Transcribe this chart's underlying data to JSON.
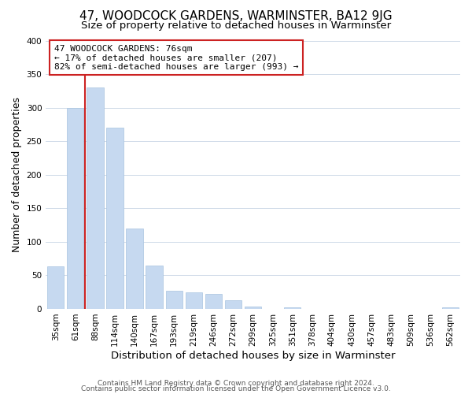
{
  "title": "47, WOODCOCK GARDENS, WARMINSTER, BA12 9JG",
  "subtitle": "Size of property relative to detached houses in Warminster",
  "xlabel": "Distribution of detached houses by size in Warminster",
  "ylabel": "Number of detached properties",
  "bar_labels": [
    "35sqm",
    "61sqm",
    "88sqm",
    "114sqm",
    "140sqm",
    "167sqm",
    "193sqm",
    "219sqm",
    "246sqm",
    "272sqm",
    "299sqm",
    "325sqm",
    "351sqm",
    "378sqm",
    "404sqm",
    "430sqm",
    "457sqm",
    "483sqm",
    "509sqm",
    "536sqm",
    "562sqm"
  ],
  "bar_values": [
    63,
    300,
    330,
    270,
    120,
    65,
    27,
    25,
    22,
    13,
    4,
    0,
    2,
    0,
    0,
    0,
    0,
    0,
    0,
    0,
    2
  ],
  "bar_color": "#c6d9f0",
  "bar_edge_color": "#a8c4e0",
  "annotation_text": "47 WOODCOCK GARDENS: 76sqm\n← 17% of detached houses are smaller (207)\n82% of semi-detached houses are larger (993) →",
  "annotation_box_facecolor": "#ffffff",
  "annotation_box_edgecolor": "#cc2222",
  "ref_line_color": "#cc2222",
  "ref_line_x": 1.5,
  "ylim": [
    0,
    400
  ],
  "yticks": [
    0,
    50,
    100,
    150,
    200,
    250,
    300,
    350,
    400
  ],
  "footer1": "Contains HM Land Registry data © Crown copyright and database right 2024.",
  "footer2": "Contains public sector information licensed under the Open Government Licence v3.0.",
  "title_fontsize": 11,
  "subtitle_fontsize": 9.5,
  "xlabel_fontsize": 9.5,
  "ylabel_fontsize": 9,
  "tick_fontsize": 7.5,
  "annot_fontsize": 8,
  "footer_fontsize": 6.5
}
